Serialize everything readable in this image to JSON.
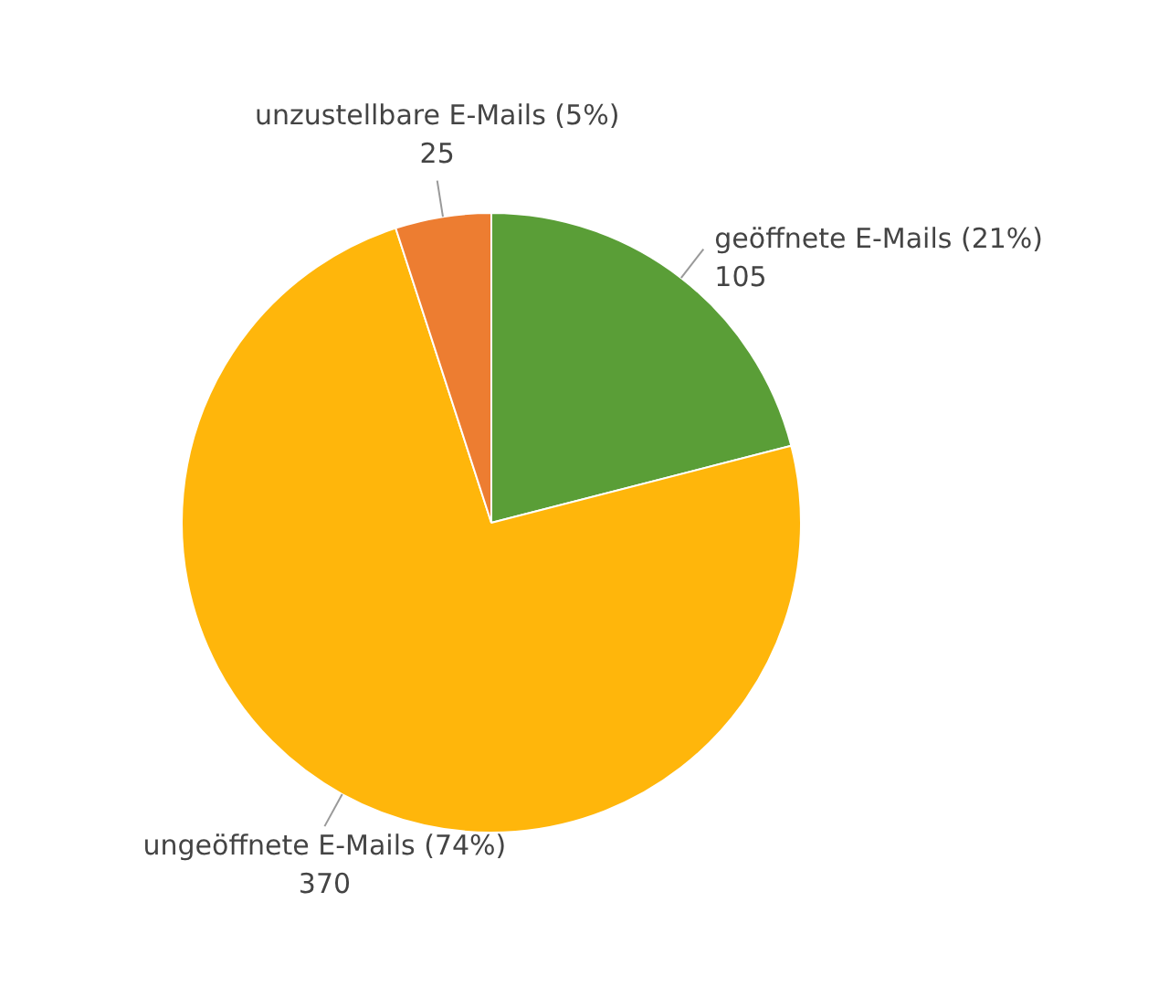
{
  "chart_data": {
    "type": "pie",
    "categories": [
      "geöffnete E-Mails (21%)",
      "ungeöffnete E-Mails (74%)",
      "unzustellbare E-Mails (5%)"
    ],
    "values": [
      105,
      370,
      25
    ],
    "colors": [
      "#5a9e37",
      "#ffb60b",
      "#ed7d31"
    ],
    "data_labels": true
  }
}
